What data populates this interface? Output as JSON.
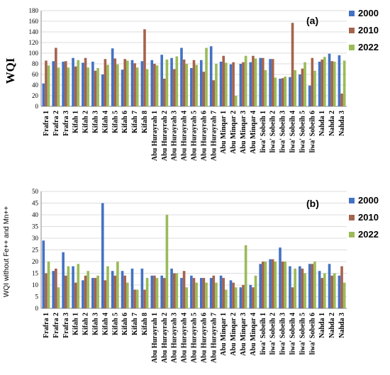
{
  "chart_data": [
    {
      "type": "bar",
      "panel_label": "(a)",
      "ylabel": "WQI",
      "xlabel": "",
      "ylim": [
        0,
        180
      ],
      "yticks": [
        0,
        20,
        40,
        60,
        80,
        100,
        120,
        140,
        160,
        180
      ],
      "grid": true,
      "legend_position": "top-right",
      "categories": [
        "Frafra 1",
        "Frafra 2",
        "Frafra 3",
        "Kifah 1",
        "Kifah 2",
        "Kifah 3",
        "Kifah 4",
        "Kifah 5",
        "Kifah 6",
        "Kifah 7",
        "Kifah 8",
        "Abu Hurayrah 1",
        "Abu Hurayrah 2",
        "Abu Hurayrah 3",
        "Abu Hurayrah 4",
        "Abu Hurayrah 5",
        "Abu Hurayrah 6",
        "Abu Hurayrah 7",
        "Abu Minqar 1",
        "Abu Minqar 2",
        "Abu Minqar 3",
        "Abu Minqar 4",
        "liwa' Sobeih 1",
        "liwa' Sobeih 2",
        "liwa' Sobeih 3",
        "liwa' Sobeih 4",
        "liwa' Sobeih 5",
        "liwa' Sobeih 6",
        "Nahda 1",
        "Nahda 2",
        "Nahda 3"
      ],
      "series": [
        {
          "name": "2000",
          "color": "#4472C4",
          "values": [
            43,
            85,
            84,
            91,
            82,
            84,
            60,
            109,
            69,
            87,
            85,
            87,
            97,
            91,
            110,
            72,
            87,
            113,
            84,
            79,
            80,
            83,
            91,
            89,
            52,
            55,
            60,
            39,
            84,
            99,
            96
          ]
        },
        {
          "name": "2010",
          "color": "#A5644E",
          "values": [
            86,
            110,
            85,
            75,
            91,
            67,
            89,
            90,
            89,
            81,
            145,
            80,
            52,
            70,
            88,
            87,
            65,
            49,
            95,
            83,
            83,
            95,
            91,
            89,
            53,
            157,
            71,
            91,
            88,
            85,
            24
          ]
        },
        {
          "name": "2022",
          "color": "#9BBB59",
          "values": [
            77,
            73,
            73,
            87,
            73,
            72,
            78,
            79,
            86,
            73,
            70,
            77,
            88,
            94,
            80,
            78,
            110,
            80,
            82,
            20,
            95,
            90,
            68,
            54,
            56,
            68,
            83,
            67,
            93,
            84,
            86
          ]
        }
      ]
    },
    {
      "type": "bar",
      "panel_label": "(b)",
      "ylabel": "WQI without Fe++ and Mn++",
      "xlabel": "",
      "ylim": [
        0,
        50
      ],
      "yticks": [
        0,
        5,
        10,
        15,
        20,
        25,
        30,
        35,
        40,
        45,
        50
      ],
      "grid": true,
      "legend_position": "top-right",
      "categories": [
        "Frafra 1",
        "Frafra 2",
        "Frafra 3",
        "Kifah 1",
        "Kifah 2",
        "Kifah 3",
        "Kifah 4",
        "Kifah 5",
        "Kifah 6",
        "Kifah 7",
        "Kifah 8",
        "Abu Hurayrah 1",
        "Abu Hurayrah 2",
        "Abu Hurayrah 3",
        "Abu Hurayrah 4",
        "Abu Hurayrah 5",
        "Abu Hurayrah 6",
        "Abu Hurayrah 7",
        "Abu Minqar 1",
        "Abu Minqar 2",
        "Abu Minqar 3",
        "Abu Minqar 4",
        "liwa' Sobeih 1",
        "liwa' Sobeih 2",
        "liwa' Sobeih 3",
        "liwa' Sobeih 4",
        "liwa' Sobeih 5",
        "liwa' Sobeih 6",
        "Nahda 1",
        "Nahda 2",
        "Nahda 3"
      ],
      "series": [
        {
          "name": "2000",
          "color": "#4472C4",
          "values": [
            29,
            16,
            24,
            18,
            12,
            13,
            45,
            16,
            16,
            17,
            17,
            14,
            14,
            17,
            13,
            14,
            13,
            13,
            14,
            12,
            9,
            10,
            19,
            21,
            26,
            18,
            18,
            19,
            16,
            19,
            14
          ]
        },
        {
          "name": "2010",
          "color": "#A5644E",
          "values": [
            15,
            17,
            14,
            11,
            14,
            13,
            12,
            14,
            14,
            8,
            8,
            14,
            13,
            15,
            16,
            13,
            13,
            14,
            13,
            11,
            10,
            9,
            20,
            21,
            20,
            9,
            17,
            19,
            13,
            14,
            18
          ]
        },
        {
          "name": "2022",
          "color": "#9BBB59",
          "values": [
            20,
            9,
            18,
            19,
            16,
            14,
            18,
            20,
            11,
            8,
            13,
            13,
            40,
            15,
            9,
            11,
            11,
            11,
            8,
            9,
            27,
            14,
            20,
            20,
            20,
            17,
            15,
            20,
            15,
            15,
            11
          ]
        }
      ]
    }
  ]
}
